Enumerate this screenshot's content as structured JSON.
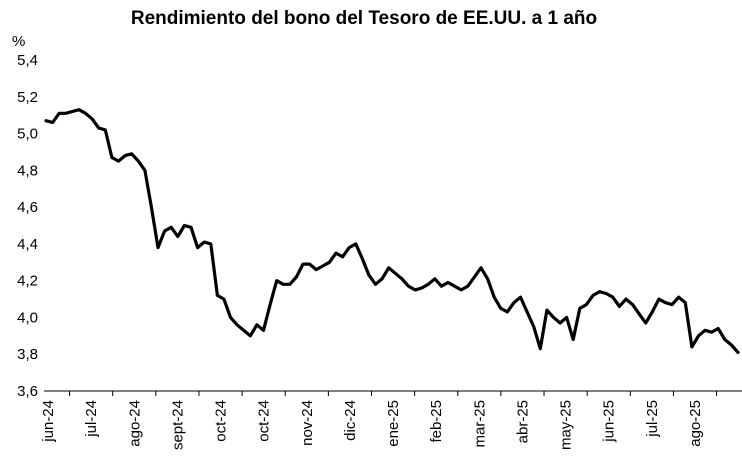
{
  "chart_data": {
    "type": "line",
    "title": "Rendimiento del bono del Tesoro de EE.UU. a 1 año",
    "ylabel": "%",
    "xlabel": "",
    "ylim": [
      3.6,
      5.4
    ],
    "yticks": [
      "5,4",
      "5,2",
      "5,0",
      "4,8",
      "4,6",
      "4,4",
      "4,2",
      "4,0",
      "3,8",
      "3,6"
    ],
    "grid": false,
    "x_tick_labels": [
      "jun-24",
      "jul-24",
      "ago-24",
      "sept-24",
      "oct-24",
      "oct-24",
      "nov-24",
      "dic-24",
      "ene-25",
      "feb-25",
      "mar-25",
      "abr-25",
      "may-25",
      "jun-25",
      "jul-25",
      "ago-25"
    ],
    "line_color": "#000000",
    "series": [
      {
        "values": [
          5.07,
          5.06,
          5.11,
          5.11,
          5.12,
          5.13,
          5.11,
          5.08,
          5.03,
          5.02,
          4.87,
          4.85,
          4.88,
          4.89,
          4.85,
          4.8,
          4.6,
          4.38,
          4.47,
          4.49,
          4.44,
          4.5,
          4.49,
          4.38,
          4.41,
          4.4,
          4.12,
          4.1,
          4.0,
          3.96,
          3.93,
          3.9,
          3.96,
          3.93,
          4.07,
          4.2,
          4.18,
          4.18,
          4.22,
          4.29,
          4.29,
          4.26,
          4.28,
          4.3,
          4.35,
          4.33,
          4.38,
          4.4,
          4.32,
          4.23,
          4.18,
          4.21,
          4.27,
          4.24,
          4.21,
          4.17,
          4.15,
          4.16,
          4.18,
          4.21,
          4.17,
          4.19,
          4.17,
          4.15,
          4.17,
          4.22,
          4.27,
          4.21,
          4.11,
          4.05,
          4.03,
          4.08,
          4.11,
          4.03,
          3.95,
          3.83,
          4.04,
          4.0,
          3.97,
          4.0,
          3.88,
          4.05,
          4.07,
          4.12,
          4.14,
          4.13,
          4.11,
          4.06,
          4.1,
          4.07,
          4.02,
          3.97,
          4.03,
          4.1,
          4.08,
          4.07,
          4.11,
          4.08,
          3.84,
          3.9,
          3.93,
          3.92,
          3.94,
          3.88,
          3.85,
          3.81
        ]
      }
    ]
  }
}
